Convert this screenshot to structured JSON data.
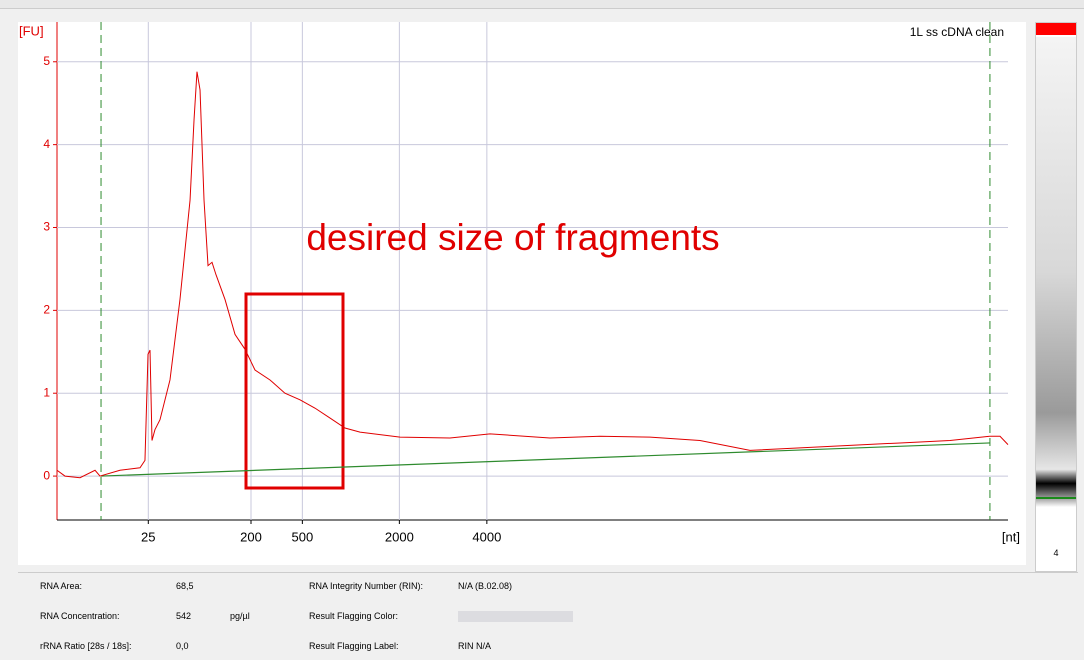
{
  "chart_data": {
    "type": "line",
    "sample_name": "1L ss cDNA clean",
    "annotation": "desired size of fragments",
    "ylabel": "[FU]",
    "xlabel": "[nt]",
    "xlim": [
      0,
      100
    ],
    "ylim": [
      -0.53,
      5.48
    ],
    "xticks": [
      {
        "value": 9.6,
        "label": "25"
      },
      {
        "value": 20.4,
        "label": "200"
      },
      {
        "value": 25.8,
        "label": "500"
      },
      {
        "value": 36.0,
        "label": "2000"
      },
      {
        "value": 45.2,
        "label": "4000"
      }
    ],
    "yticks": [
      0,
      1,
      2,
      3,
      4,
      5
    ],
    "grid": true,
    "x": [
      0,
      0.84,
      2.42,
      4.0,
      4.52,
      6.62,
      8.73,
      9.25,
      9.57,
      9.78,
      9.99,
      10.3,
      10.83,
      11.88,
      12.93,
      13.99,
      14.41,
      14.72,
      15.04,
      15.46,
      15.88,
      16.3,
      16.72,
      17.67,
      18.72,
      19.77,
      20.82,
      22.4,
      23.97,
      25.55,
      27.13,
      28.71,
      30.28,
      31.86,
      36.07,
      41.32,
      45.53,
      51.84,
      57.1,
      62.36,
      67.61,
      72.87,
      78.13,
      83.39,
      88.64,
      93.9,
      98.07,
      99.16,
      100
    ],
    "series": [
      {
        "color": "#e00000",
        "values": [
          0.07,
          0,
          -0.02,
          0.07,
          0,
          0.07,
          0.1,
          0.19,
          1.47,
          1.52,
          0.43,
          0.56,
          0.68,
          1.16,
          2.13,
          3.33,
          4.3,
          4.88,
          4.66,
          3.33,
          2.54,
          2.58,
          2.43,
          2.13,
          1.71,
          1.53,
          1.28,
          1.16,
          1.0,
          0.92,
          0.82,
          0.7,
          0.58,
          0.53,
          0.47,
          0.46,
          0.51,
          0.46,
          0.48,
          0.47,
          0.43,
          0.31,
          0.34,
          0.37,
          0.4,
          0.43,
          0.48,
          0.48,
          0.38
        ]
      }
    ],
    "baseline": {
      "color": "#2e8b2e",
      "x": [
        4.63,
        98.1
      ],
      "values": [
        0,
        0.4
      ]
    },
    "gel_lane_label": "4"
  },
  "info": {
    "rows": [
      [
        "RNA Area:",
        "68,5",
        "",
        "RNA Integrity Number (RIN):",
        "N/A   (B.02.08)"
      ],
      [
        "RNA Concentration:",
        "542",
        "pg/µl",
        "Result Flagging Color:",
        ""
      ],
      [
        "rRNA Ratio [28s / 18s]:",
        "0,0",
        "",
        "Result Flagging Label:",
        "RIN N/A"
      ]
    ]
  }
}
